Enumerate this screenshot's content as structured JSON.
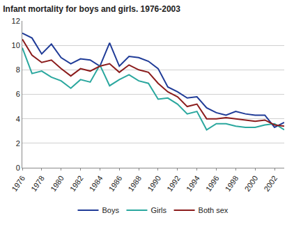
{
  "chart_data": {
    "type": "line",
    "title": "Infant mortality for boys and girls. 1976-2003",
    "x": [
      1976,
      1977,
      1978,
      1979,
      1980,
      1981,
      1982,
      1983,
      1984,
      1985,
      1986,
      1987,
      1988,
      1989,
      1990,
      1991,
      1992,
      1993,
      1994,
      1995,
      1996,
      1997,
      1998,
      1999,
      2000,
      2001,
      2002,
      2003
    ],
    "series": [
      {
        "name": "Boys",
        "color": "#1f3b97",
        "values": [
          11.0,
          10.6,
          9.3,
          10.1,
          9.0,
          8.5,
          8.9,
          8.8,
          8.3,
          10.2,
          8.3,
          9.1,
          9.0,
          8.7,
          8.1,
          6.6,
          6.2,
          5.7,
          5.8,
          4.9,
          4.5,
          4.3,
          4.6,
          4.4,
          4.3,
          4.3,
          3.3,
          3.7
        ]
      },
      {
        "name": "Girls",
        "color": "#2aa79e",
        "values": [
          9.8,
          7.7,
          7.9,
          7.4,
          7.1,
          6.5,
          7.2,
          7.0,
          8.4,
          6.7,
          7.2,
          7.6,
          7.1,
          6.9,
          5.6,
          5.7,
          5.2,
          4.4,
          4.6,
          3.1,
          3.6,
          3.6,
          3.4,
          3.3,
          3.3,
          3.5,
          3.6,
          3.1
        ]
      },
      {
        "name": "Both sex",
        "color": "#8b1c1c",
        "values": [
          10.5,
          9.2,
          8.6,
          8.8,
          8.1,
          7.5,
          8.1,
          7.9,
          8.3,
          8.5,
          7.8,
          8.4,
          8.0,
          7.8,
          6.9,
          6.2,
          5.8,
          5.0,
          5.2,
          4.0,
          4.0,
          4.1,
          4.0,
          3.9,
          3.8,
          3.9,
          3.5,
          3.4
        ]
      }
    ],
    "xlim": [
      1976,
      2003
    ],
    "xticks": [
      1976,
      1978,
      1980,
      1982,
      1984,
      1986,
      1988,
      1990,
      1992,
      1994,
      1996,
      1998,
      2000,
      2002
    ],
    "ylim": [
      0,
      12
    ],
    "yticks": [
      0,
      2,
      4,
      6,
      8,
      10,
      12
    ],
    "grid": true,
    "legend": "bottom"
  }
}
